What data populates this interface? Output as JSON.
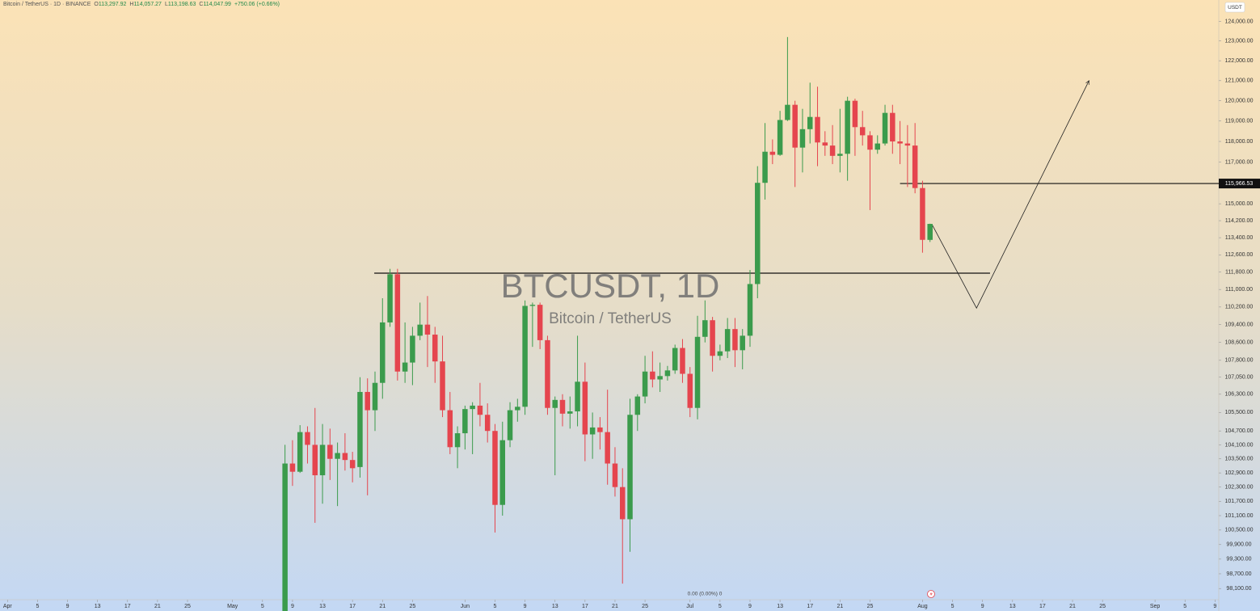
{
  "chart_data": {
    "type": "candlestick",
    "header": {
      "symbol": "Bitcoin / TetherUS · 1D · BINANCE",
      "fields": [
        {
          "key": "O",
          "text": "113,297.92"
        },
        {
          "key": "H",
          "text": "114,057.27"
        },
        {
          "key": "L",
          "text": "113,198.63"
        },
        {
          "key": "C",
          "text": "114,047.99"
        }
      ],
      "change": "+750.06 (+0.66%)"
    },
    "watermark": {
      "title": "BTCUSDT, 1D",
      "subtitle": "Bitcoin / TetherUS"
    },
    "currency": "USDT",
    "footer_status": "0.00 (0.00%) 0",
    "log_scale": true,
    "grid": false,
    "up_color": "#3b9b4c",
    "down_color": "#e5454e",
    "x": [
      37,
      38,
      39,
      40,
      41,
      42,
      43,
      44,
      45,
      46,
      47,
      48,
      49,
      50,
      51,
      52,
      53,
      54,
      55,
      56,
      57,
      58,
      59,
      60,
      61,
      62,
      63,
      64,
      65,
      66,
      67,
      68,
      69,
      70,
      71,
      72,
      73,
      74,
      75,
      76,
      77,
      78,
      79,
      80,
      81,
      82,
      83,
      84,
      85,
      86,
      87,
      88,
      89,
      90,
      91,
      92,
      93,
      94,
      95,
      96,
      97,
      98,
      99,
      100,
      101,
      102,
      103,
      104,
      105,
      106,
      107,
      108,
      109,
      110,
      111,
      112,
      113,
      114,
      115,
      116,
      117,
      118,
      119,
      120,
      121,
      122,
      123
    ],
    "open": [
      97000,
      103300,
      102950,
      104650,
      104100,
      102800,
      104100,
      103500,
      103750,
      103450,
      103150,
      106400,
      105600,
      106800,
      109500,
      111700,
      107300,
      107700,
      108900,
      109400,
      108950,
      107750,
      105600,
      104000,
      104600,
      105650,
      105800,
      105400,
      104700,
      101550,
      104300,
      105600,
      105750,
      110250,
      110300,
      108700,
      105700,
      106050,
      105450,
      105550,
      106850,
      104550,
      104850,
      104650,
      103300,
      102300,
      100950,
      105400,
      106200,
      107300,
      106950,
      107100,
      107350,
      108350,
      107200,
      105700,
      108850,
      109600,
      108000,
      108200,
      109200,
      108250,
      108900,
      111250,
      116000,
      117500,
      117350,
      119050,
      119800,
      117700,
      118600,
      119200,
      117950,
      117800,
      117300,
      117400,
      120000,
      118700,
      118300,
      117600,
      117900,
      119400,
      118000,
      117900,
      117800,
      115750,
      113297.92
    ],
    "high": [
      104100,
      104300,
      104950,
      104900,
      105700,
      105000,
      104800,
      104200,
      104600,
      103800,
      107050,
      107000,
      107300,
      110600,
      111950,
      111950,
      109500,
      109300,
      110400,
      110700,
      109300,
      108900,
      106400,
      104900,
      105800,
      105950,
      106800,
      105900,
      105000,
      105100,
      105950,
      106100,
      110500,
      110400,
      110400,
      108900,
      106200,
      106300,
      106200,
      108900,
      107700,
      105500,
      105300,
      106500,
      104000,
      103100,
      106100,
      106300,
      108000,
      108200,
      107700,
      107550,
      108500,
      108750,
      107500,
      109800,
      110500,
      109750,
      108500,
      109700,
      109700,
      109200,
      111900,
      116800,
      118900,
      118100,
      119500,
      123200,
      120000,
      119600,
      120900,
      120700,
      118500,
      118800,
      119600,
      120200,
      120100,
      119500,
      118500,
      118300,
      119800,
      119800,
      119000,
      118800,
      118900,
      116100,
      114057.27
    ],
    "low": [
      96900,
      102350,
      102900,
      103300,
      100800,
      101600,
      102600,
      101500,
      103000,
      102500,
      102700,
      101950,
      104700,
      106100,
      109300,
      106900,
      106800,
      106700,
      108700,
      107500,
      106800,
      105300,
      103700,
      103100,
      103900,
      103700,
      104900,
      104200,
      100400,
      101100,
      104000,
      105100,
      105400,
      108400,
      108300,
      105400,
      102800,
      104900,
      104800,
      104900,
      103400,
      103500,
      103900,
      102400,
      101900,
      98300,
      99600,
      104700,
      105900,
      106600,
      106400,
      106900,
      107200,
      106800,
      105300,
      105200,
      108600,
      107300,
      107800,
      107900,
      107500,
      107400,
      108400,
      110600,
      115200,
      116900,
      117300,
      119000,
      115800,
      116500,
      117900,
      116800,
      117300,
      116900,
      116500,
      116100,
      117300,
      117800,
      114700,
      117400,
      117800,
      117400,
      116900,
      115800,
      115500,
      112700,
      113198.63
    ],
    "close": [
      103300,
      102950,
      104650,
      104100,
      102800,
      104100,
      103500,
      103750,
      103450,
      103100,
      106400,
      105600,
      106800,
      109500,
      111700,
      107300,
      107700,
      108900,
      109400,
      108950,
      107750,
      105600,
      104000,
      104600,
      105650,
      105800,
      105400,
      104700,
      101550,
      104300,
      105600,
      105750,
      110250,
      110300,
      108700,
      105700,
      106050,
      105450,
      105550,
      106850,
      104550,
      104850,
      104650,
      103300,
      102300,
      100950,
      105400,
      106200,
      107300,
      106950,
      107100,
      107350,
      108350,
      107200,
      105700,
      108850,
      109600,
      108000,
      108200,
      109200,
      108250,
      108900,
      111250,
      116000,
      117500,
      117350,
      119050,
      119800,
      117700,
      118600,
      119200,
      117950,
      117800,
      117300,
      117400,
      120000,
      118700,
      118300,
      117600,
      117900,
      119400,
      118000,
      117900,
      117800,
      115750,
      113300,
      114047.99
    ],
    "xlim": [
      -1,
      161.5
    ],
    "xticks": [
      {
        "value": 0,
        "label": "Apr"
      },
      {
        "value": 4,
        "label": "5"
      },
      {
        "value": 8,
        "label": "9"
      },
      {
        "value": 12,
        "label": "13"
      },
      {
        "value": 16,
        "label": "17"
      },
      {
        "value": 20,
        "label": "21"
      },
      {
        "value": 24,
        "label": "25"
      },
      {
        "value": 30,
        "label": "May"
      },
      {
        "value": 34,
        "label": "5"
      },
      {
        "value": 38,
        "label": "9"
      },
      {
        "value": 42,
        "label": "13"
      },
      {
        "value": 46,
        "label": "17"
      },
      {
        "value": 50,
        "label": "21"
      },
      {
        "value": 54,
        "label": "25"
      },
      {
        "value": 61,
        "label": "Jun"
      },
      {
        "value": 65,
        "label": "5"
      },
      {
        "value": 69,
        "label": "9"
      },
      {
        "value": 73,
        "label": "13"
      },
      {
        "value": 77,
        "label": "17"
      },
      {
        "value": 81,
        "label": "21"
      },
      {
        "value": 85,
        "label": "25"
      },
      {
        "value": 91,
        "label": "Jul"
      },
      {
        "value": 95,
        "label": "5"
      },
      {
        "value": 99,
        "label": "9"
      },
      {
        "value": 103,
        "label": "13"
      },
      {
        "value": 107,
        "label": "17"
      },
      {
        "value": 111,
        "label": "21"
      },
      {
        "value": 115,
        "label": "25"
      },
      {
        "value": 122,
        "label": "Aug"
      },
      {
        "value": 126,
        "label": "5"
      },
      {
        "value": 130,
        "label": "9"
      },
      {
        "value": 134,
        "label": "13"
      },
      {
        "value": 138,
        "label": "17"
      },
      {
        "value": 142,
        "label": "21"
      },
      {
        "value": 146,
        "label": "25"
      },
      {
        "value": 153,
        "label": "Sep"
      },
      {
        "value": 157,
        "label": "5"
      },
      {
        "value": 161,
        "label": "9"
      }
    ],
    "ylim": [
      97650,
      125100
    ],
    "yticks": [
      {
        "value": 124000,
        "label": "124,000.00"
      },
      {
        "value": 123000,
        "label": "123,000.00"
      },
      {
        "value": 122000,
        "label": "122,000.00"
      },
      {
        "value": 121000,
        "label": "121,000.00"
      },
      {
        "value": 120000,
        "label": "120,000.00"
      },
      {
        "value": 119000,
        "label": "119,000.00"
      },
      {
        "value": 118000,
        "label": "118,000.00"
      },
      {
        "value": 117000,
        "label": "117,000.00"
      },
      {
        "value": 115000,
        "label": "115,000.00"
      },
      {
        "value": 114200,
        "label": "114,200.00"
      },
      {
        "value": 113400,
        "label": "113,400.00"
      },
      {
        "value": 112600,
        "label": "112,600.00"
      },
      {
        "value": 111800,
        "label": "111,800.00"
      },
      {
        "value": 111000,
        "label": "111,000.00"
      },
      {
        "value": 110200,
        "label": "110,200.00"
      },
      {
        "value": 109400,
        "label": "109,400.00"
      },
      {
        "value": 108600,
        "label": "108,600.00"
      },
      {
        "value": 107800,
        "label": "107,800.00"
      },
      {
        "value": 107050,
        "label": "107,050.00"
      },
      {
        "value": 106300,
        "label": "106,300.00"
      },
      {
        "value": 105500,
        "label": "105,500.00"
      },
      {
        "value": 104700,
        "label": "104,700.00"
      },
      {
        "value": 104100,
        "label": "104,100.00"
      },
      {
        "value": 103500,
        "label": "103,500.00"
      },
      {
        "value": 102900,
        "label": "102,900.00"
      },
      {
        "value": 102300,
        "label": "102,300.00"
      },
      {
        "value": 101700,
        "label": "101,700.00"
      },
      {
        "value": 101100,
        "label": "101,100.00"
      },
      {
        "value": 100500,
        "label": "100,500.00"
      },
      {
        "value": 99900,
        "label": "99,900.00"
      },
      {
        "value": 99300,
        "label": "99,300.00"
      },
      {
        "value": 98700,
        "label": "98,700.00"
      },
      {
        "value": 98100,
        "label": "98,100.00"
      }
    ],
    "hlines": [
      {
        "value": 115966.53,
        "label": "115,966.53",
        "x": [
          119,
          161.5
        ]
      },
      {
        "value": 111750,
        "x": [
          48.9,
          131
        ]
      }
    ],
    "arrow": {
      "x": [
        123.3,
        129.2,
        144.2
      ],
      "y": [
        114000,
        110150,
        121000
      ]
    }
  }
}
